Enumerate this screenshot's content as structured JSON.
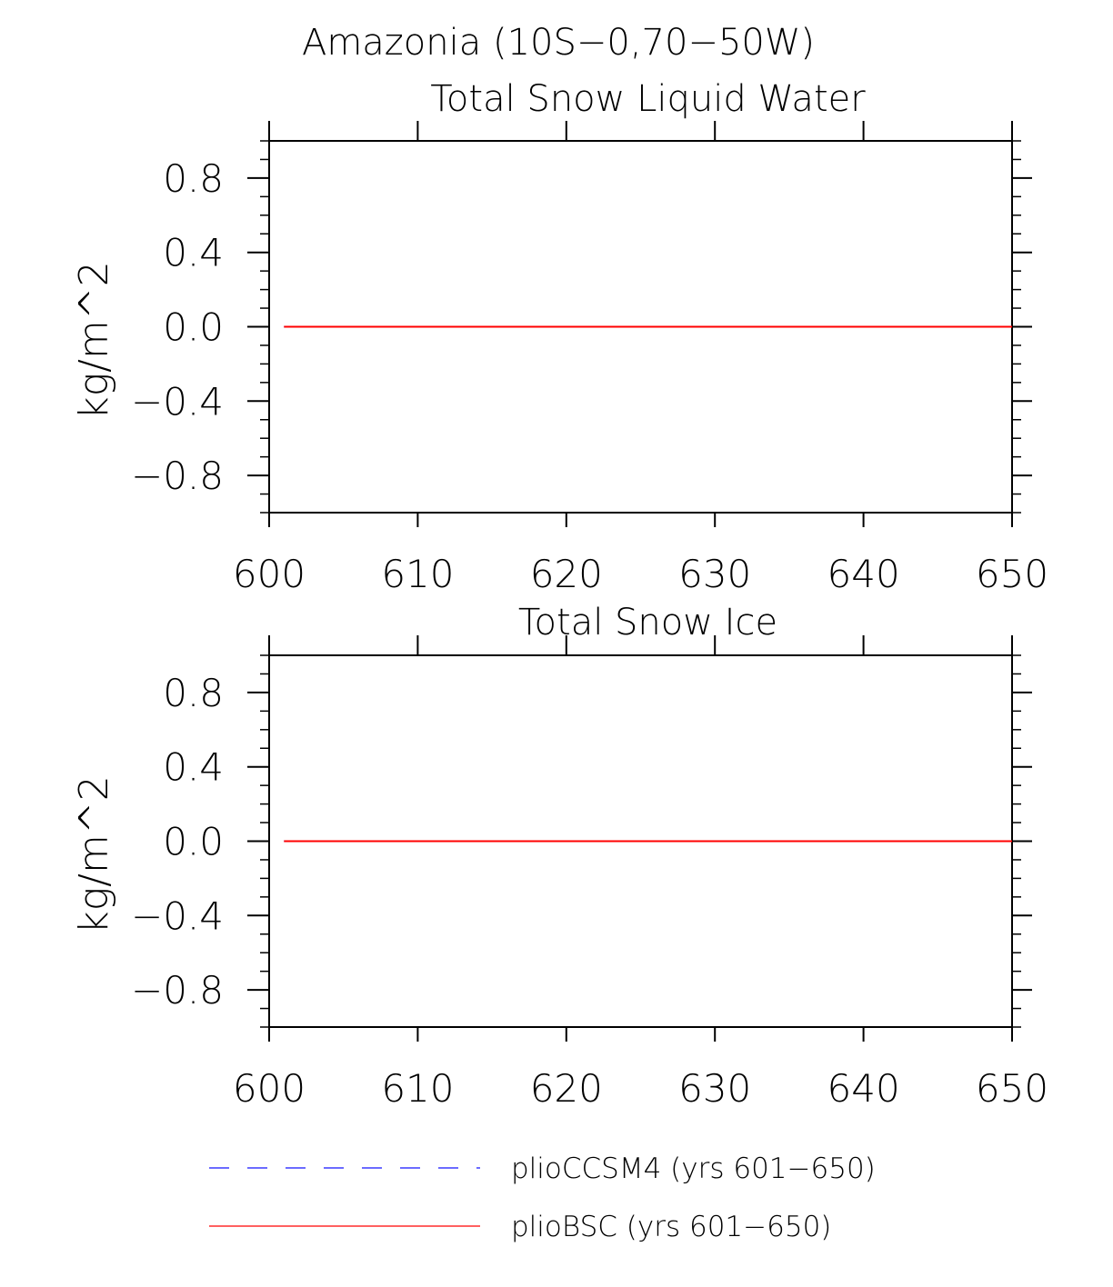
{
  "figure": {
    "title": "Amazonia (10S−0,70−50W)"
  },
  "chart_data": [
    {
      "type": "line",
      "title": "Total Snow Liquid Water",
      "xlabel": "",
      "ylabel": "kg/m^2",
      "xlim": [
        600,
        650
      ],
      "ylim": [
        -1.0,
        1.0
      ],
      "xticks": [
        600,
        610,
        620,
        630,
        640,
        650
      ],
      "xtick_labels": [
        "600",
        "610",
        "620",
        "630",
        "640",
        "650"
      ],
      "yticks": [
        0.8,
        0.4,
        0.0,
        -0.4,
        -0.8
      ],
      "ytick_labels": [
        "0.8",
        "0.4",
        "0.0",
        "−0.4",
        "−0.8"
      ],
      "grid": false,
      "series": [
        {
          "name": "plioCCSM4 (yrs 601−650)",
          "color": "#0000ff",
          "dash": "dashed",
          "x_range": [
            601,
            650
          ],
          "value": 0.0
        },
        {
          "name": "plioBSC (yrs 601−650)",
          "color": "#ff0000",
          "dash": "solid",
          "x_range": [
            601,
            650
          ],
          "value": 0.0
        }
      ]
    },
    {
      "type": "line",
      "title": "Total Snow Ice",
      "xlabel": "",
      "ylabel": "kg/m^2",
      "xlim": [
        600,
        650
      ],
      "ylim": [
        -1.0,
        1.0
      ],
      "xticks": [
        600,
        610,
        620,
        630,
        640,
        650
      ],
      "xtick_labels": [
        "600",
        "610",
        "620",
        "630",
        "640",
        "650"
      ],
      "yticks": [
        0.8,
        0.4,
        0.0,
        -0.4,
        -0.8
      ],
      "ytick_labels": [
        "0.8",
        "0.4",
        "0.0",
        "−0.4",
        "−0.8"
      ],
      "grid": false,
      "series": [
        {
          "name": "plioCCSM4 (yrs 601−650)",
          "color": "#0000ff",
          "dash": "dashed",
          "x_range": [
            601,
            650
          ],
          "value": 0.0
        },
        {
          "name": "plioBSC (yrs 601−650)",
          "color": "#ff0000",
          "dash": "solid",
          "x_range": [
            601,
            650
          ],
          "value": 0.0
        }
      ]
    }
  ],
  "legend": {
    "placement": "bottom",
    "entries": [
      {
        "label": "plioCCSM4 (yrs 601−650)",
        "color": "#3b3bff",
        "dash": "dashed"
      },
      {
        "label": "plioBSC (yrs 601−650)",
        "color": "#ff2b2b",
        "dash": "solid"
      }
    ]
  }
}
